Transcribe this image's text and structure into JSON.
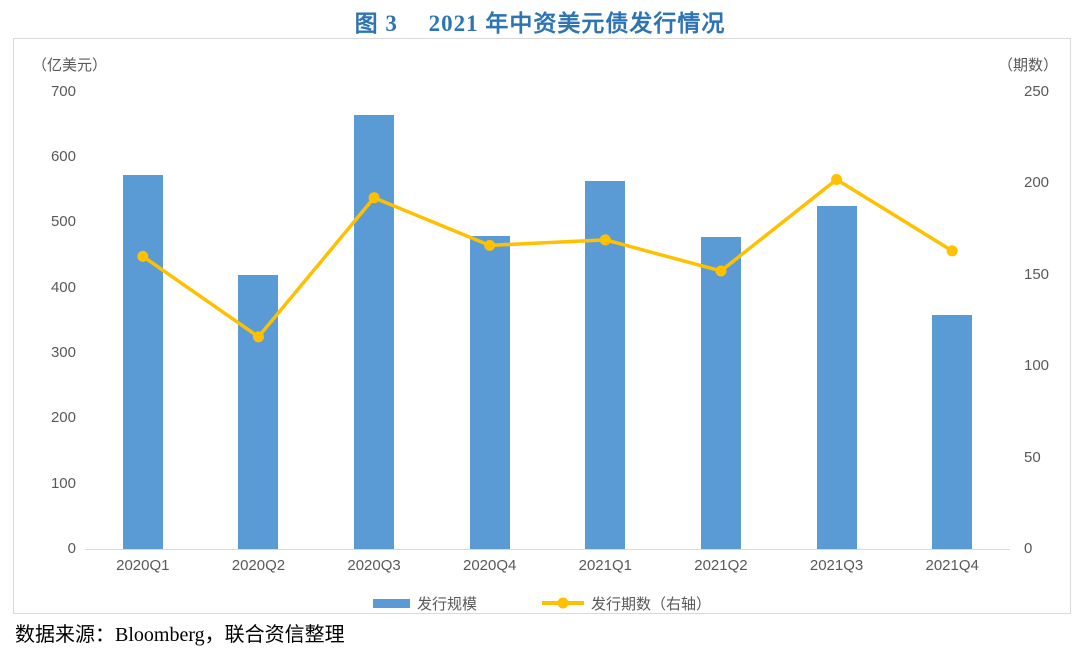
{
  "title": "图 3　 2021 年中资美元债发行情况",
  "source_note": "数据来源：Bloomberg，联合资信整理",
  "colors": {
    "bar": "#5B9BD5",
    "line": "#FFC000",
    "title": "#2E74B5",
    "axis_text": "#595959",
    "border": "#D9D9D9"
  },
  "chart_data": {
    "type": "bar",
    "title": "图 3　2021 年中资美元债发行情况",
    "categories": [
      "2020Q1",
      "2020Q2",
      "2020Q3",
      "2020Q4",
      "2021Q1",
      "2021Q2",
      "2021Q3",
      "2021Q4"
    ],
    "series": [
      {
        "name": "发行规模",
        "chart_type": "bar",
        "axis": "left",
        "color": "#5B9BD5",
        "values": [
          573,
          420,
          665,
          479,
          564,
          477,
          525,
          358
        ]
      },
      {
        "name": "发行期数（右轴）",
        "chart_type": "line",
        "axis": "right",
        "color": "#FFC000",
        "values": [
          160,
          116,
          192,
          166,
          169,
          152,
          202,
          163
        ]
      }
    ],
    "left_axis": {
      "unit_label": "（亿美元）",
      "min": 0,
      "max": 700,
      "ticks": [
        700,
        600,
        500,
        400,
        300,
        200,
        100,
        0
      ]
    },
    "right_axis": {
      "unit_label": "（期数）",
      "min": 0,
      "max": 250,
      "ticks": [
        250,
        200,
        150,
        100,
        50,
        0
      ]
    },
    "grid": false,
    "legend_position": "bottom-center"
  },
  "legend": {
    "items": [
      {
        "label": "发行规模",
        "marker": "square",
        "color": "#5B9BD5"
      },
      {
        "label": "发行期数（右轴）",
        "marker": "line-dot",
        "color": "#FFC000"
      }
    ]
  }
}
